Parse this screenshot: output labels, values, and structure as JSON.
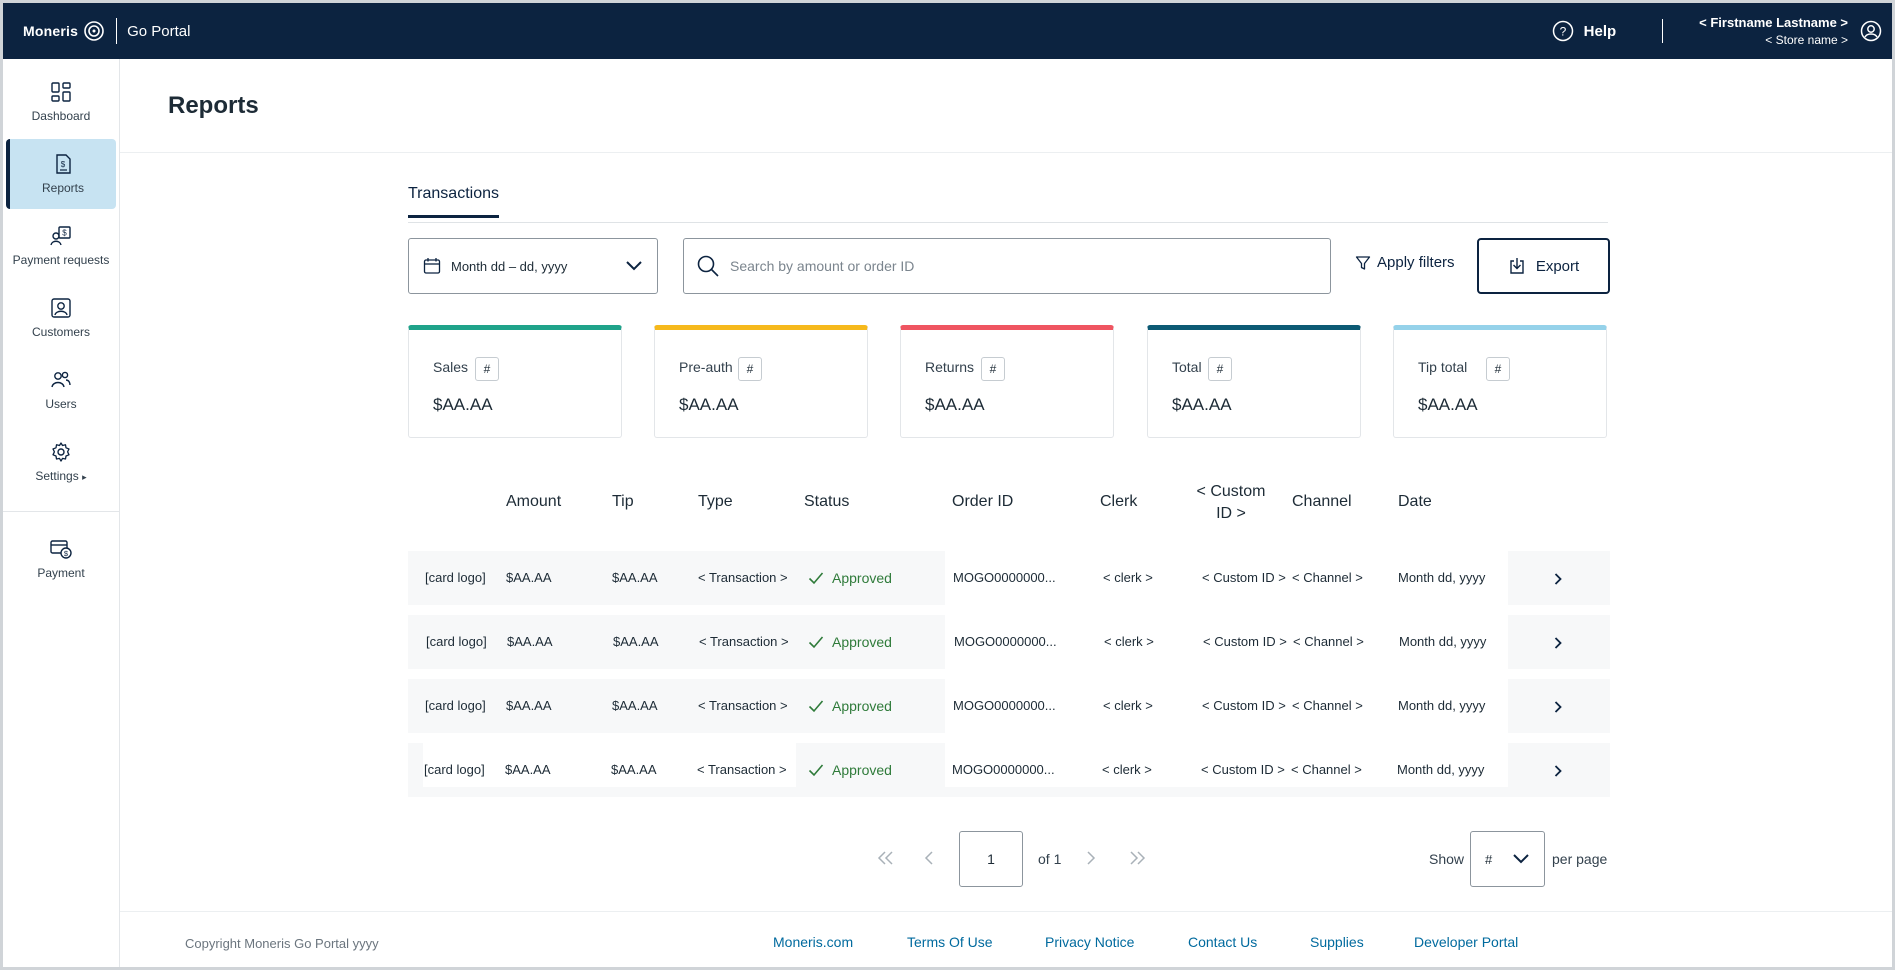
{
  "header": {
    "brand_name": "Moneris",
    "product_name": "Go Portal",
    "help_label": "Help",
    "user_name": "< Firstname Lastname >",
    "store_name": "< Store name >"
  },
  "sidebar": {
    "items": [
      {
        "label": "Dashboard",
        "icon": "dashboard-icon"
      },
      {
        "label": "Reports",
        "icon": "reports-icon",
        "active": true
      },
      {
        "label": "Payment requests",
        "icon": "payment-requests-icon"
      },
      {
        "label": "Customers",
        "icon": "customers-icon"
      },
      {
        "label": "Users",
        "icon": "users-icon"
      },
      {
        "label": "Settings",
        "icon": "gear-icon"
      },
      {
        "label": "Payment",
        "icon": "payment-icon"
      }
    ]
  },
  "page": {
    "title": "Reports"
  },
  "tabs": [
    {
      "label": "Transactions",
      "active": true
    }
  ],
  "filters": {
    "date_range": "Month dd – dd, yyyy",
    "search_placeholder": "Search by amount or order ID",
    "apply_filters": "Apply filters",
    "export": "Export"
  },
  "summary_cards": [
    {
      "label": "Sales",
      "badge": "#",
      "value": "$AA.AA",
      "color": "#1fa38a"
    },
    {
      "label": "Pre-auth",
      "badge": "#",
      "value": "$AA.AA",
      "color": "#f6b91c"
    },
    {
      "label": "Returns",
      "badge": "#",
      "value": "$AA.AA",
      "color": "#ef5561"
    },
    {
      "label": "Total",
      "badge": "#",
      "value": "$AA.AA",
      "color": "#0c5a74"
    },
    {
      "label": "Tip total",
      "badge": "#",
      "value": "$AA.AA",
      "color": "#95d2ea"
    }
  ],
  "table": {
    "columns": [
      "Amount",
      "Tip",
      "Type",
      "Status",
      "Order ID",
      "Clerk",
      "< Custom ID >",
      "Channel",
      "Date"
    ],
    "custom_col_line1": "< Custom",
    "custom_col_line2": "ID >",
    "rows": [
      {
        "card": "[card logo]",
        "amount": "$AA.AA",
        "tip": "$AA.AA",
        "type": "< Transaction >",
        "status": "Approved",
        "order_id": "MOGO0000000...",
        "clerk": "< clerk >",
        "custom_id": "< Custom ID >",
        "channel": "< Channel >",
        "date": "Month dd, yyyy"
      },
      {
        "card": "[card logo]",
        "amount": "$AA.AA",
        "tip": "$AA.AA",
        "type": "< Transaction >",
        "status": "Approved",
        "order_id": "MOGO0000000...",
        "clerk": "< clerk >",
        "custom_id": "< Custom ID >",
        "channel": "< Channel >",
        "date": "Month dd, yyyy"
      },
      {
        "card": "[card logo]",
        "amount": "$AA.AA",
        "tip": "$AA.AA",
        "type": "< Transaction >",
        "status": "Approved",
        "order_id": "MOGO0000000...",
        "clerk": "< clerk >",
        "custom_id": "< Custom ID >",
        "channel": "< Channel >",
        "date": "Month dd, yyyy"
      },
      {
        "card": "[card logo]",
        "amount": "$AA.AA",
        "tip": "$AA.AA",
        "type": "< Transaction >",
        "status": "Approved",
        "order_id": "MOGO0000000...",
        "clerk": "< clerk >",
        "custom_id": "< Custom ID >",
        "channel": "< Channel >",
        "date": "Month dd, yyyy"
      }
    ]
  },
  "pagination": {
    "current_page": "1",
    "of_text": "of 1",
    "show_label": "Show",
    "per_page_value": "#",
    "per_page_label": "per page"
  },
  "footer": {
    "copyright": "Copyright Moneris Go Portal  yyyy",
    "links": [
      "Moneris.com",
      "Terms Of Use",
      "Privacy Notice",
      "Contact Us",
      "Supplies",
      "Developer Portal"
    ]
  },
  "colors": {
    "topbar": "#0c2340",
    "active_nav": "#c7e3f2",
    "approved": "#2f7b3a",
    "link": "#006a9e"
  }
}
